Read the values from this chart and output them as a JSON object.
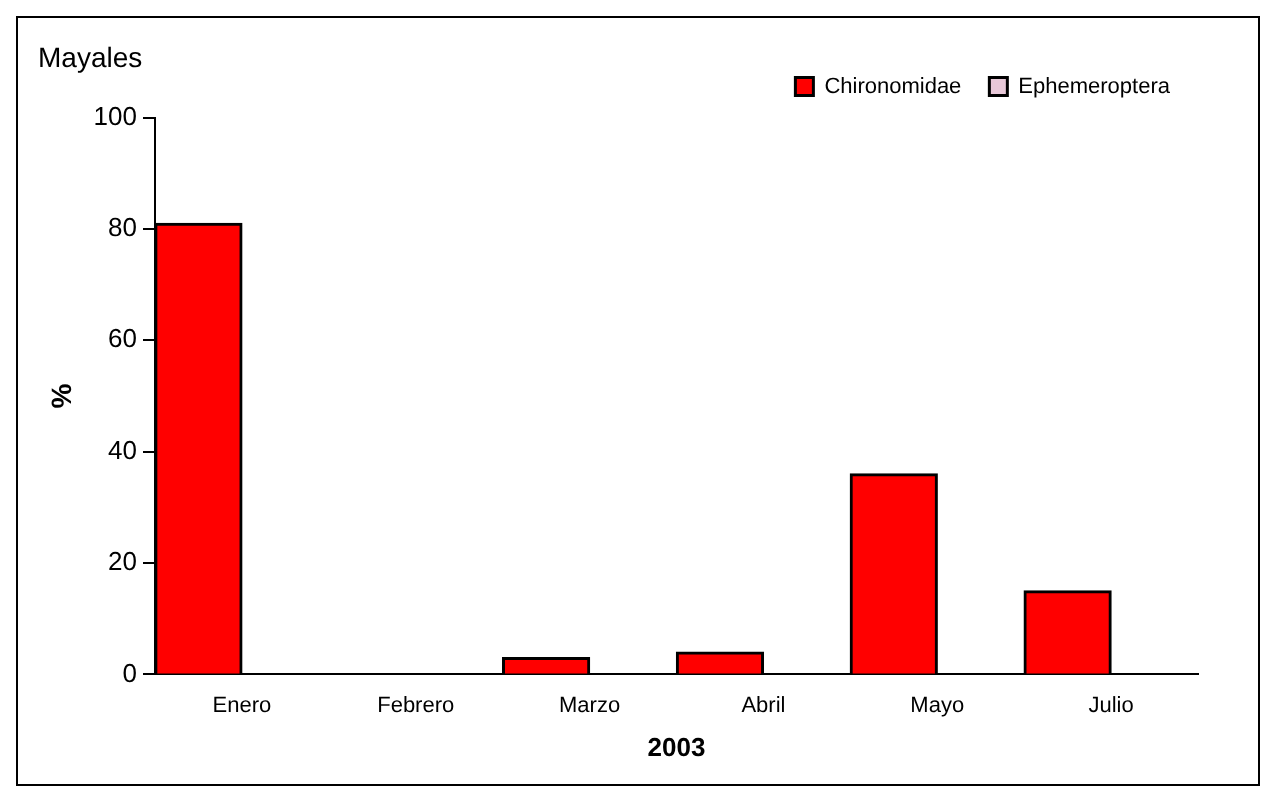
{
  "chart_data": {
    "type": "bar",
    "title": "Mayales",
    "xlabel": "2003",
    "ylabel": "%",
    "categories": [
      "Enero",
      "Febrero",
      "Marzo",
      "Abril",
      "Mayo",
      "Julio"
    ],
    "series": [
      {
        "name": "Chironomidae",
        "color": "#ff0000",
        "values": [
          81,
          0,
          3,
          4,
          36,
          15
        ]
      },
      {
        "name": "Ephemeroptera",
        "color": "#e8c8d8",
        "values": [
          0,
          0,
          0,
          0,
          0,
          0
        ]
      }
    ],
    "ylim": [
      0,
      100
    ],
    "yticks": [
      0,
      20,
      40,
      60,
      80,
      100
    ],
    "grid": false,
    "legend": "top right"
  }
}
